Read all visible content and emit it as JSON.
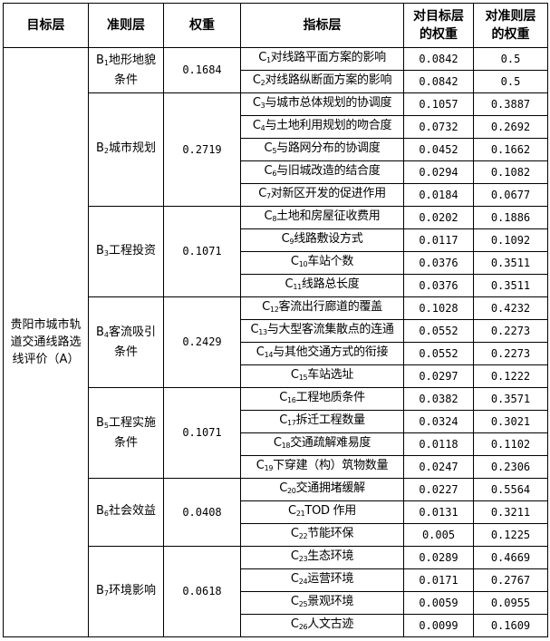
{
  "headers": [
    "目标层",
    "准则层",
    "权重",
    "指标层",
    "对目标层的权重",
    "对准则层的权重"
  ],
  "goal": "贵阳市城市轨道交通线路选线评价（A）",
  "criteria": [
    {
      "prefix": "B",
      "sub": "1",
      "name": "地形地貌条件",
      "weight": "0.1684",
      "indicators": [
        {
          "prefix": "C",
          "sub": "1",
          "name": "对线路平面方案的影响",
          "w_goal": "0.0842",
          "w_crit": "0.5"
        },
        {
          "prefix": "C",
          "sub": "2",
          "name": "对线路纵断面方案的影响",
          "w_goal": "0.0842",
          "w_crit": "0.5"
        }
      ]
    },
    {
      "prefix": "B",
      "sub": "2",
      "name": "城市规划",
      "weight": "0.2719",
      "indicators": [
        {
          "prefix": "C",
          "sub": "3",
          "name": "与城市总体规划的协调度",
          "w_goal": "0.1057",
          "w_crit": "0.3887"
        },
        {
          "prefix": "C",
          "sub": "4",
          "name": "与土地利用规划的吻合度",
          "w_goal": "0.0732",
          "w_crit": "0.2692"
        },
        {
          "prefix": "C",
          "sub": "5",
          "name": "与路网分布的协调度",
          "w_goal": "0.0452",
          "w_crit": "0.1662"
        },
        {
          "prefix": "C",
          "sub": "6",
          "name": "与旧城改造的结合度",
          "w_goal": "0.0294",
          "w_crit": "0.1082"
        },
        {
          "prefix": "C",
          "sub": "7",
          "name": "对新区开发的促进作用",
          "w_goal": "0.0184",
          "w_crit": "0.0677"
        }
      ]
    },
    {
      "prefix": "B",
      "sub": "3",
      "name": "工程投资",
      "weight": "0.1071",
      "indicators": [
        {
          "prefix": "C",
          "sub": "8",
          "name": "土地和房屋征收费用",
          "w_goal": "0.0202",
          "w_crit": "0.1886"
        },
        {
          "prefix": "C",
          "sub": "9",
          "name": "线路敷设方式",
          "w_goal": "0.0117",
          "w_crit": "0.1092"
        },
        {
          "prefix": "C",
          "sub": "10",
          "name": "车站个数",
          "w_goal": "0.0376",
          "w_crit": "0.3511"
        },
        {
          "prefix": "C",
          "sub": "11",
          "name": "线路总长度",
          "w_goal": "0.0376",
          "w_crit": "0.3511"
        }
      ]
    },
    {
      "prefix": "B",
      "sub": "4",
      "name": "客流吸引条件",
      "weight": "0.2429",
      "indicators": [
        {
          "prefix": "C",
          "sub": "12",
          "name": "客流出行廊道的覆盖",
          "w_goal": "0.1028",
          "w_crit": "0.4232"
        },
        {
          "prefix": "C",
          "sub": "13",
          "name": "与大型客流集散点的连通",
          "w_goal": "0.0552",
          "w_crit": "0.2273"
        },
        {
          "prefix": "C",
          "sub": "14",
          "name": "与其他交通方式的衔接",
          "w_goal": "0.0552",
          "w_crit": "0.2273"
        },
        {
          "prefix": "C",
          "sub": "15",
          "name": "车站选址",
          "w_goal": "0.0297",
          "w_crit": "0.1222"
        }
      ]
    },
    {
      "prefix": "B",
      "sub": "5",
      "name": "工程实施条件",
      "weight": "0.1071",
      "indicators": [
        {
          "prefix": "C",
          "sub": "16",
          "name": "工程地质条件",
          "w_goal": "0.0382",
          "w_crit": "0.3571"
        },
        {
          "prefix": "C",
          "sub": "17",
          "name": "拆迁工程数量",
          "w_goal": "0.0324",
          "w_crit": "0.3021"
        },
        {
          "prefix": "C",
          "sub": "18",
          "name": "交通疏解难易度",
          "w_goal": "0.0118",
          "w_crit": "0.1102"
        },
        {
          "prefix": "C",
          "sub": "19",
          "name": "下穿建（构）筑物数量",
          "w_goal": "0.0247",
          "w_crit": "0.2306"
        }
      ]
    },
    {
      "prefix": "B",
      "sub": "6",
      "name": "社会效益",
      "weight": "0.0408",
      "indicators": [
        {
          "prefix": "C",
          "sub": "20",
          "name": "交通拥堵缓解",
          "w_goal": "0.0227",
          "w_crit": "0.5564"
        },
        {
          "prefix": "C",
          "sub": "21",
          "name": "TOD 作用",
          "w_goal": "0.0131",
          "w_crit": "0.3211"
        },
        {
          "prefix": "C",
          "sub": "22",
          "name": "节能环保",
          "w_goal": "0.005",
          "w_crit": "0.1225"
        }
      ]
    },
    {
      "prefix": "B",
      "sub": "7",
      "name": "环境影响",
      "weight": "0.0618",
      "indicators": [
        {
          "prefix": "C",
          "sub": "23",
          "name": "生态环境",
          "w_goal": "0.0289",
          "w_crit": "0.4669"
        },
        {
          "prefix": "C",
          "sub": "24",
          "name": "运营环境",
          "w_goal": "0.0171",
          "w_crit": "0.2767"
        },
        {
          "prefix": "C",
          "sub": "25",
          "name": "景观环境",
          "w_goal": "0.0059",
          "w_crit": "0.0955"
        },
        {
          "prefix": "C",
          "sub": "26",
          "name": "人文古迹",
          "w_goal": "0.0099",
          "w_crit": "0.1609"
        }
      ]
    }
  ]
}
